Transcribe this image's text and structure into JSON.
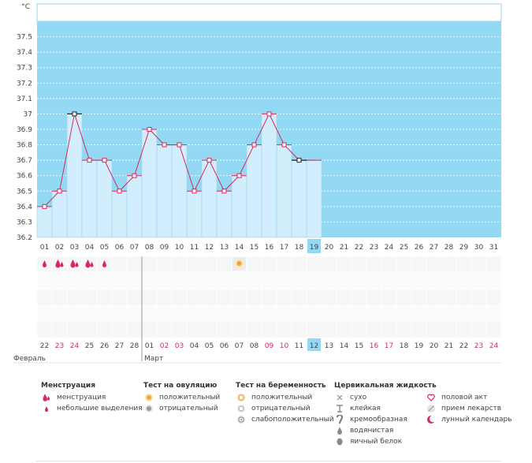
{
  "colors": {
    "plot_bg": "#93d9f3",
    "bar_fill": "#d2eefc",
    "bar_stroke": "#9ad3ef",
    "line": "#d9285c",
    "highlight": "#93d9f3",
    "weekend_text": "#d9285c",
    "normal_text": "#444444"
  },
  "chart_data": {
    "type": "bar",
    "ylabel": "°C",
    "ylim": [
      36.2,
      37.6
    ],
    "yticks": [
      "36.2",
      "36.3",
      "36.4",
      "36.5",
      "36.6",
      "36.7",
      "36.8",
      "36.9",
      "37",
      "37.1",
      "37.2",
      "37.3",
      "37.4",
      "37.5"
    ],
    "categories": [
      "01",
      "02",
      "03",
      "04",
      "05",
      "06",
      "07",
      "08",
      "09",
      "10",
      "11",
      "12",
      "13",
      "14",
      "15",
      "16",
      "17",
      "18",
      "19",
      "20",
      "21",
      "22",
      "23",
      "24",
      "25",
      "26",
      "27",
      "28",
      "29",
      "30",
      "31"
    ],
    "values": [
      36.4,
      36.5,
      37.0,
      36.7,
      36.7,
      36.5,
      36.6,
      36.9,
      36.8,
      36.8,
      36.5,
      36.7,
      36.5,
      36.6,
      36.8,
      37.0,
      36.8,
      36.7,
      36.7,
      null,
      null,
      null,
      null,
      null,
      null,
      null,
      null,
      null,
      null,
      null,
      null
    ],
    "black_markers": [
      3,
      18
    ],
    "no_marker": [
      19
    ],
    "highlight_cycle_day": "19",
    "grid": true
  },
  "symbols": {
    "menstruation": [
      1,
      2,
      3,
      4,
      5
    ],
    "menstruation_count": [
      1,
      2,
      2,
      2,
      1
    ],
    "ovulation_positive": [
      14
    ]
  },
  "calendar": {
    "dates": [
      "22",
      "23",
      "24",
      "25",
      "26",
      "27",
      "28",
      "01",
      "02",
      "03",
      "04",
      "05",
      "06",
      "07",
      "08",
      "09",
      "10",
      "11",
      "12",
      "13",
      "14",
      "15",
      "16",
      "17",
      "18",
      "19",
      "20",
      "21",
      "22",
      "23",
      "24"
    ],
    "weekend": [
      1,
      2,
      8,
      9,
      15,
      16,
      22,
      23,
      29,
      30
    ],
    "highlight_index": 18,
    "month1": "Февраль",
    "month2": "Март"
  },
  "legend": {
    "menstruation": {
      "title": "Менструация",
      "items": [
        "менструация",
        "небольшие выделения"
      ]
    },
    "ovulation": {
      "title": "Тест на овуляцию",
      "items": [
        "положительный",
        "отрицательный"
      ]
    },
    "pregnancy": {
      "title": "Тест на беременность",
      "items": [
        "положительный",
        "отрицательный",
        "слабоположительный"
      ]
    },
    "cervical": {
      "title": "Цервикальная жидкость",
      "items": [
        "сухо",
        "клейкая",
        "кремообразная",
        "водянистая",
        "яичный белок"
      ]
    },
    "other": {
      "items": [
        "половой акт",
        "прием лекарств",
        "лунный календарь"
      ]
    }
  }
}
